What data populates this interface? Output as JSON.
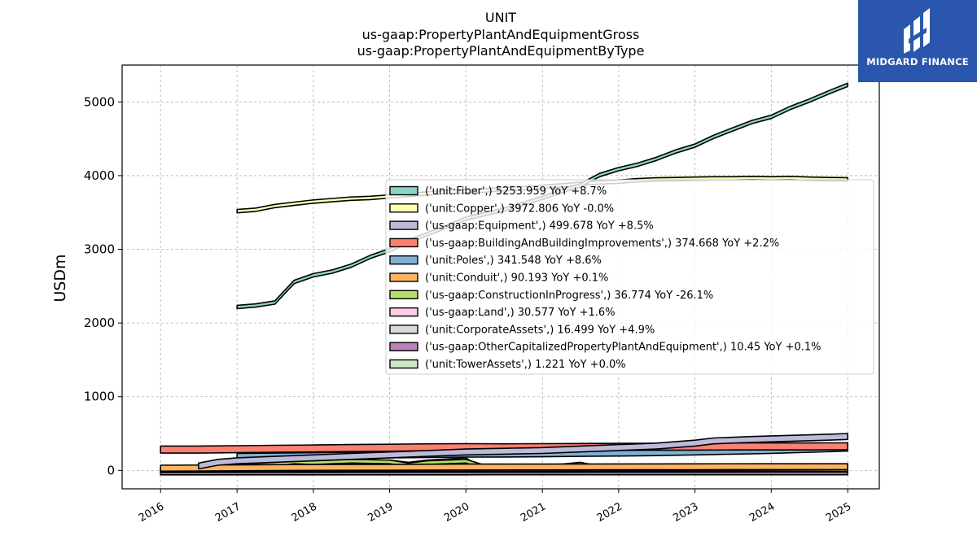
{
  "brand": {
    "name": "MIDGARD FINANCE",
    "logo_icon": "midgard-logo-icon",
    "background": "#2a56ad"
  },
  "chart_data": {
    "type": "area",
    "title_lines": [
      "UNIT",
      "us-gaap:PropertyPlantAndEquipmentGross",
      "us-gaap:PropertyPlantAndEquipmentByType"
    ],
    "xlabel": "",
    "ylabel": "USDm",
    "xlim": [
      "2015-07-01",
      "2025-06-01"
    ],
    "ylim": [
      -250,
      5500
    ],
    "yticks": [
      0,
      1000,
      2000,
      3000,
      4000,
      5000
    ],
    "xticks": [
      "2016",
      "2017",
      "2018",
      "2019",
      "2020",
      "2021",
      "2022",
      "2023",
      "2024",
      "2025"
    ],
    "grid": true,
    "legend_position": "center-right",
    "series": [
      {
        "name": "('unit:Fiber',)",
        "legend": "('unit:Fiber',) 5253.959 YoY +8.7%",
        "color": "#8dd3c7",
        "band": 45,
        "points": [
          [
            "2017-01-01",
            2240
          ],
          [
            "2017-04-01",
            2260
          ],
          [
            "2017-07-01",
            2300
          ],
          [
            "2017-10-01",
            2580
          ],
          [
            "2018-01-01",
            2670
          ],
          [
            "2018-04-01",
            2720
          ],
          [
            "2018-07-01",
            2800
          ],
          [
            "2018-10-01",
            2920
          ],
          [
            "2019-01-01",
            3010
          ],
          [
            "2019-04-01",
            3130
          ],
          [
            "2019-07-01",
            3230
          ],
          [
            "2019-10-01",
            3330
          ],
          [
            "2020-01-01",
            3440
          ],
          [
            "2020-04-01",
            3500
          ],
          [
            "2020-07-01",
            3560
          ],
          [
            "2020-10-01",
            3640
          ],
          [
            "2021-01-01",
            3720
          ],
          [
            "2021-04-01",
            3810
          ],
          [
            "2021-07-01",
            3890
          ],
          [
            "2021-10-01",
            4030
          ],
          [
            "2022-01-01",
            4110
          ],
          [
            "2022-04-01",
            4170
          ],
          [
            "2022-07-01",
            4250
          ],
          [
            "2022-10-01",
            4350
          ],
          [
            "2023-01-01",
            4430
          ],
          [
            "2023-04-01",
            4550
          ],
          [
            "2023-07-01",
            4650
          ],
          [
            "2023-10-01",
            4750
          ],
          [
            "2024-01-01",
            4820
          ],
          [
            "2024-04-01",
            4940
          ],
          [
            "2024-07-01",
            5040
          ],
          [
            "2024-10-01",
            5150
          ],
          [
            "2025-01-01",
            5254
          ]
        ]
      },
      {
        "name": "('unit:Copper',)",
        "legend": "('unit:Copper',) 3972.806 YoY -0.0%",
        "color": "#ffffb3",
        "band": 45,
        "points": [
          [
            "2017-01-01",
            3540
          ],
          [
            "2017-04-01",
            3560
          ],
          [
            "2017-07-01",
            3610
          ],
          [
            "2017-10-01",
            3640
          ],
          [
            "2018-01-01",
            3670
          ],
          [
            "2018-04-01",
            3690
          ],
          [
            "2018-07-01",
            3710
          ],
          [
            "2018-10-01",
            3720
          ],
          [
            "2019-01-01",
            3740
          ],
          [
            "2019-04-01",
            3760
          ],
          [
            "2019-07-01",
            3780
          ],
          [
            "2019-10-01",
            3800
          ],
          [
            "2020-01-01",
            3810
          ],
          [
            "2020-04-01",
            3820
          ],
          [
            "2020-07-01",
            3840
          ],
          [
            "2020-10-01",
            3850
          ],
          [
            "2021-01-01",
            3870
          ],
          [
            "2021-04-01",
            3890
          ],
          [
            "2021-07-01",
            3910
          ],
          [
            "2021-10-01",
            3930
          ],
          [
            "2022-01-01",
            3940
          ],
          [
            "2022-04-01",
            3960
          ],
          [
            "2022-07-01",
            3970
          ],
          [
            "2022-10-01",
            3975
          ],
          [
            "2023-01-01",
            3980
          ],
          [
            "2023-04-01",
            3985
          ],
          [
            "2023-07-01",
            3985
          ],
          [
            "2023-10-01",
            3990
          ],
          [
            "2024-01-01",
            3985
          ],
          [
            "2024-04-01",
            3990
          ],
          [
            "2024-07-01",
            3980
          ],
          [
            "2024-10-01",
            3975
          ],
          [
            "2025-01-01",
            3973
          ]
        ]
      },
      {
        "name": "('us-gaap:Equipment',)",
        "legend": "('us-gaap:Equipment',) 499.678 YoY +8.5%",
        "color": "#bebada",
        "band": 80,
        "points": [
          [
            "2016-07-01",
            100
          ],
          [
            "2016-10-01",
            150
          ],
          [
            "2017-01-01",
            170
          ],
          [
            "2017-07-01",
            190
          ],
          [
            "2018-01-01",
            210
          ],
          [
            "2018-07-01",
            230
          ],
          [
            "2019-01-01",
            250
          ],
          [
            "2019-07-01",
            270
          ],
          [
            "2020-01-01",
            290
          ],
          [
            "2020-07-01",
            300
          ],
          [
            "2021-01-01",
            310
          ],
          [
            "2021-07-01",
            330
          ],
          [
            "2022-01-01",
            350
          ],
          [
            "2022-07-01",
            370
          ],
          [
            "2023-01-01",
            410
          ],
          [
            "2023-04-01",
            440
          ],
          [
            "2023-10-01",
            460
          ],
          [
            "2024-04-01",
            475
          ],
          [
            "2024-10-01",
            490
          ],
          [
            "2025-01-01",
            500
          ]
        ]
      },
      {
        "name": "('us-gaap:BuildingAndBuildingImprovements',)",
        "legend": "('us-gaap:BuildingAndBuildingImprovements',) 374.668 YoY +2.2%",
        "color": "#fb8072",
        "band": 95,
        "points": [
          [
            "2016-01-01",
            330
          ],
          [
            "2016-07-01",
            330
          ],
          [
            "2017-01-01",
            335
          ],
          [
            "2017-07-01",
            340
          ],
          [
            "2018-01-01",
            345
          ],
          [
            "2018-07-01",
            350
          ],
          [
            "2019-01-01",
            355
          ],
          [
            "2019-07-01",
            360
          ],
          [
            "2020-01-01",
            362
          ],
          [
            "2020-07-01",
            360
          ],
          [
            "2021-01-01",
            362
          ],
          [
            "2021-07-01",
            365
          ],
          [
            "2022-01-01",
            367
          ],
          [
            "2022-07-01",
            368
          ],
          [
            "2023-01-01",
            370
          ],
          [
            "2023-07-01",
            372
          ],
          [
            "2024-01-01",
            372
          ],
          [
            "2024-07-01",
            373
          ],
          [
            "2025-01-01",
            375
          ]
        ]
      },
      {
        "name": "('unit:Poles',)",
        "legend": "('unit:Poles',) 341.548 YoY +8.6%",
        "color": "#80b1d3",
        "band": 80,
        "points": [
          [
            "2017-01-01",
            230
          ],
          [
            "2017-07-01",
            235
          ],
          [
            "2018-01-01",
            240
          ],
          [
            "2018-07-01",
            245
          ],
          [
            "2019-01-01",
            250
          ],
          [
            "2019-07-01",
            255
          ],
          [
            "2020-01-01",
            260
          ],
          [
            "2020-07-01",
            262
          ],
          [
            "2021-01-01",
            265
          ],
          [
            "2021-07-01",
            270
          ],
          [
            "2022-01-01",
            275
          ],
          [
            "2022-07-01",
            280
          ],
          [
            "2023-01-01",
            290
          ],
          [
            "2023-07-01",
            300
          ],
          [
            "2024-01-01",
            310
          ],
          [
            "2024-07-01",
            325
          ],
          [
            "2025-01-01",
            342
          ]
        ]
      },
      {
        "name": "('unit:Conduit',)",
        "legend": "('unit:Conduit',) 90.193 YoY +0.1%",
        "color": "#fdb462",
        "band": 80,
        "points": [
          [
            "2016-01-01",
            70
          ],
          [
            "2017-01-01",
            75
          ],
          [
            "2018-01-01",
            80
          ],
          [
            "2019-01-01",
            82
          ],
          [
            "2020-01-01",
            85
          ],
          [
            "2021-01-01",
            86
          ],
          [
            "2022-01-01",
            88
          ],
          [
            "2023-01-01",
            89
          ],
          [
            "2024-01-01",
            90
          ],
          [
            "2025-01-01",
            90
          ]
        ]
      },
      {
        "name": "('us-gaap:ConstructionInProgress',)",
        "legend": "('us-gaap:ConstructionInProgress',) 36.774 YoY -26.1%",
        "color": "#b3de69",
        "band": 50,
        "points": [
          [
            "2017-01-01",
            80
          ],
          [
            "2017-07-01",
            110
          ],
          [
            "2017-10-01",
            140
          ],
          [
            "2018-01-01",
            130
          ],
          [
            "2018-07-01",
            150
          ],
          [
            "2019-01-01",
            140
          ],
          [
            "2019-04-01",
            100
          ],
          [
            "2019-07-01",
            130
          ],
          [
            "2020-01-01",
            150
          ],
          [
            "2020-04-01",
            70
          ],
          [
            "2020-07-01",
            60
          ],
          [
            "2021-01-01",
            60
          ],
          [
            "2021-07-01",
            110
          ],
          [
            "2021-10-01",
            60
          ],
          [
            "2022-07-01",
            50
          ],
          [
            "2023-07-01",
            45
          ],
          [
            "2024-07-01",
            40
          ],
          [
            "2025-01-01",
            37
          ]
        ]
      },
      {
        "name": "('us-gaap:Land',)",
        "legend": "('us-gaap:Land',) 30.577 YoY +1.6%",
        "color": "#fccde5",
        "band": 40,
        "points": [
          [
            "2016-01-01",
            25
          ],
          [
            "2018-01-01",
            27
          ],
          [
            "2020-01-01",
            28
          ],
          [
            "2022-01-01",
            29
          ],
          [
            "2024-01-01",
            30
          ],
          [
            "2025-01-01",
            31
          ]
        ]
      },
      {
        "name": "('unit:CorporateAssets',)",
        "legend": "('unit:CorporateAssets',) 16.499 YoY +4.9%",
        "color": "#d9d9d9",
        "band": 40,
        "points": [
          [
            "2016-01-01",
            12
          ],
          [
            "2018-01-01",
            13
          ],
          [
            "2020-01-01",
            14
          ],
          [
            "2022-01-01",
            15
          ],
          [
            "2024-01-01",
            16
          ],
          [
            "2025-01-01",
            16.5
          ]
        ]
      },
      {
        "name": "('us-gaap:OtherCapitalizedPropertyPlantAndEquipment',)",
        "legend": "('us-gaap:OtherCapitalizedPropertyPlantAndEquipment',) 10.45 YoY +0.1%",
        "color": "#bc80bd",
        "band": 70,
        "points": [
          [
            "2016-01-01",
            10
          ],
          [
            "2018-01-01",
            10.2
          ],
          [
            "2020-01-01",
            10.3
          ],
          [
            "2020-04-01",
            10.4
          ],
          [
            "2022-01-01",
            10.4
          ],
          [
            "2025-01-01",
            10.45
          ]
        ]
      },
      {
        "name": "('unit:TowerAssets',)",
        "legend": "('unit:TowerAssets',) 1.221 YoY +0.0%",
        "color": "#ccebc5",
        "band": 45,
        "points": [
          [
            "2017-01-01",
            2
          ],
          [
            "2017-04-01",
            40
          ],
          [
            "2018-01-01",
            70
          ],
          [
            "2018-07-01",
            100
          ],
          [
            "2019-01-01",
            140
          ],
          [
            "2019-04-01",
            110
          ],
          [
            "2019-07-01",
            140
          ],
          [
            "2020-01-01",
            170
          ],
          [
            "2020-04-01",
            5
          ],
          [
            "2021-01-01",
            3
          ],
          [
            "2022-01-01",
            2
          ],
          [
            "2023-01-01",
            1.5
          ],
          [
            "2024-01-01",
            1.3
          ],
          [
            "2025-01-01",
            1.2
          ]
        ]
      }
    ]
  }
}
